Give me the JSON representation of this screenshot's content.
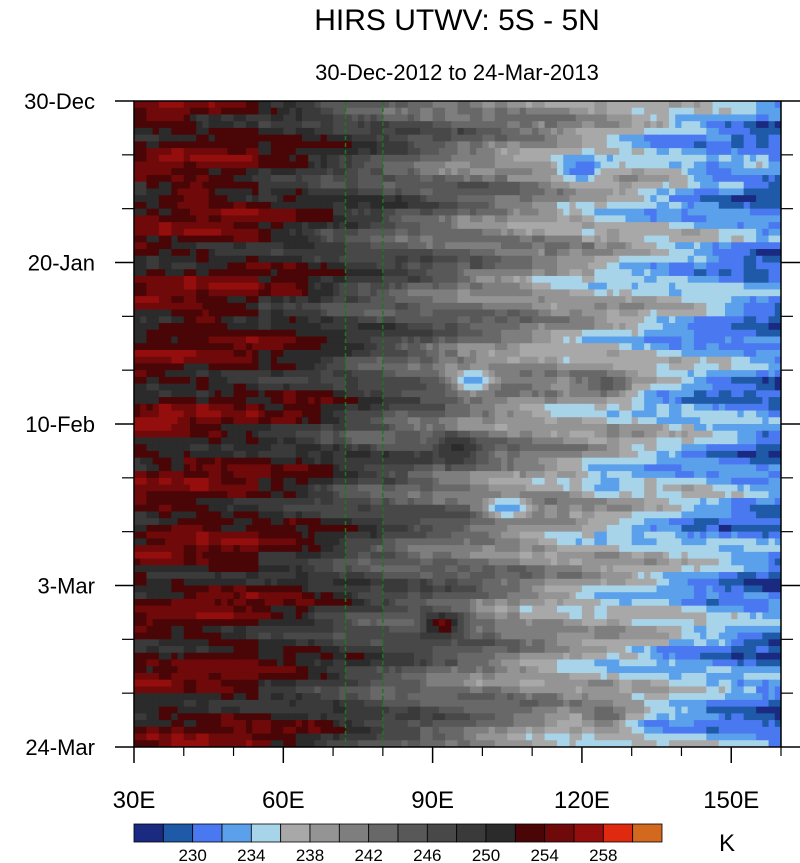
{
  "chart_data": {
    "type": "heatmap",
    "title": "HIRS UTWV: 5S - 5N",
    "subtitle": "30-Dec-2012 to 24-Mar-2013",
    "xaxis": {
      "range": [
        30,
        160
      ],
      "ticks": [
        {
          "value": 30,
          "label": "30E"
        },
        {
          "value": 60,
          "label": "60E"
        },
        {
          "value": 90,
          "label": "90E"
        },
        {
          "value": 120,
          "label": "120E"
        },
        {
          "value": 150,
          "label": "150E"
        }
      ],
      "minor_step": 10
    },
    "yaxis": {
      "range_days": [
        0,
        84
      ],
      "ticks": [
        {
          "day": 0,
          "label": "30-Dec"
        },
        {
          "day": 21,
          "label": "20-Jan"
        },
        {
          "day": 42,
          "label": "10-Feb"
        },
        {
          "day": 63,
          "label": "3-Mar"
        },
        {
          "day": 84,
          "label": "24-Mar"
        }
      ],
      "minor_step_days": 7
    },
    "reference_lines": [
      {
        "longitude": 72.5,
        "color": "#1b7a1b",
        "style": "dashed"
      },
      {
        "longitude": 80,
        "color": "#1b7a1b",
        "style": "dashed"
      }
    ],
    "colorbar": {
      "units": "K",
      "levels": [
        228,
        230,
        232,
        234,
        236,
        238,
        240,
        242,
        244,
        246,
        248,
        250,
        252,
        254,
        256,
        258,
        260
      ],
      "colors": [
        "#1a2a80",
        "#1f5aa8",
        "#4a78f0",
        "#5aa0ea",
        "#a8d4ea",
        "#a8a8a8",
        "#949494",
        "#7e7e7e",
        "#686868",
        "#585858",
        "#484848",
        "#3a3a3a",
        "#2b2b2b",
        "#4a0606",
        "#700a0a",
        "#950e0e",
        "#e02a10",
        "#d2691e"
      ],
      "labels": [
        {
          "value": 230,
          "text": "230"
        },
        {
          "value": 234,
          "text": "234"
        },
        {
          "value": 238,
          "text": "238"
        },
        {
          "value": 242,
          "text": "242"
        },
        {
          "value": 246,
          "text": "246"
        },
        {
          "value": 250,
          "text": "250"
        },
        {
          "value": 254,
          "text": "254"
        },
        {
          "value": 258,
          "text": "258"
        }
      ]
    },
    "field_features": [
      {
        "lon": 37,
        "day": 1.5,
        "value": 256
      },
      {
        "lon": 42,
        "day": 12,
        "value": 256
      },
      {
        "lon": 44,
        "day": 28.5,
        "value": 255
      },
      {
        "lon": 36,
        "day": 41.5,
        "value": 257
      },
      {
        "lon": 36,
        "day": 52,
        "value": 254
      },
      {
        "lon": 41,
        "day": 56,
        "value": 256
      },
      {
        "lon": 43,
        "day": 65.5,
        "value": 255
      },
      {
        "lon": 92,
        "day": 68,
        "value": 255
      },
      {
        "lon": 48,
        "day": 75,
        "value": 254
      },
      {
        "lon": 65,
        "day": 33,
        "value": 252
      },
      {
        "lon": 95,
        "day": 45,
        "value": 251
      },
      {
        "lon": 120,
        "day": 9,
        "value": 230
      },
      {
        "lon": 147,
        "day": 9,
        "value": 231
      },
      {
        "lon": 148,
        "day": 30,
        "value": 231
      },
      {
        "lon": 98,
        "day": 36.5,
        "value": 232
      },
      {
        "lon": 105,
        "day": 53,
        "value": 232
      },
      {
        "lon": 125,
        "day": 50,
        "value": 233
      },
      {
        "lon": 135,
        "day": 66,
        "value": 236
      },
      {
        "lon": 125,
        "day": 80,
        "value": 244
      },
      {
        "lon": 125,
        "day": 37,
        "value": 245
      }
    ]
  }
}
